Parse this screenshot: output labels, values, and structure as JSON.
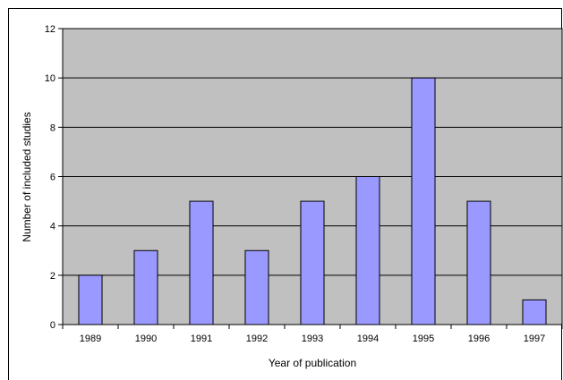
{
  "chart_data": {
    "type": "bar",
    "categories": [
      "1989",
      "1990",
      "1991",
      "1992",
      "1993",
      "1994",
      "1995",
      "1996",
      "1997"
    ],
    "values": [
      2,
      3,
      5,
      3,
      5,
      6,
      10,
      5,
      1
    ],
    "xlabel": "Year of publication",
    "ylabel": "Number of included studies",
    "ylim": [
      0,
      12
    ],
    "yticks": [
      0,
      2,
      4,
      6,
      8,
      10,
      12
    ],
    "grid": true,
    "plot_background": "#c0c0c0",
    "bar_color": "#9999ff"
  }
}
